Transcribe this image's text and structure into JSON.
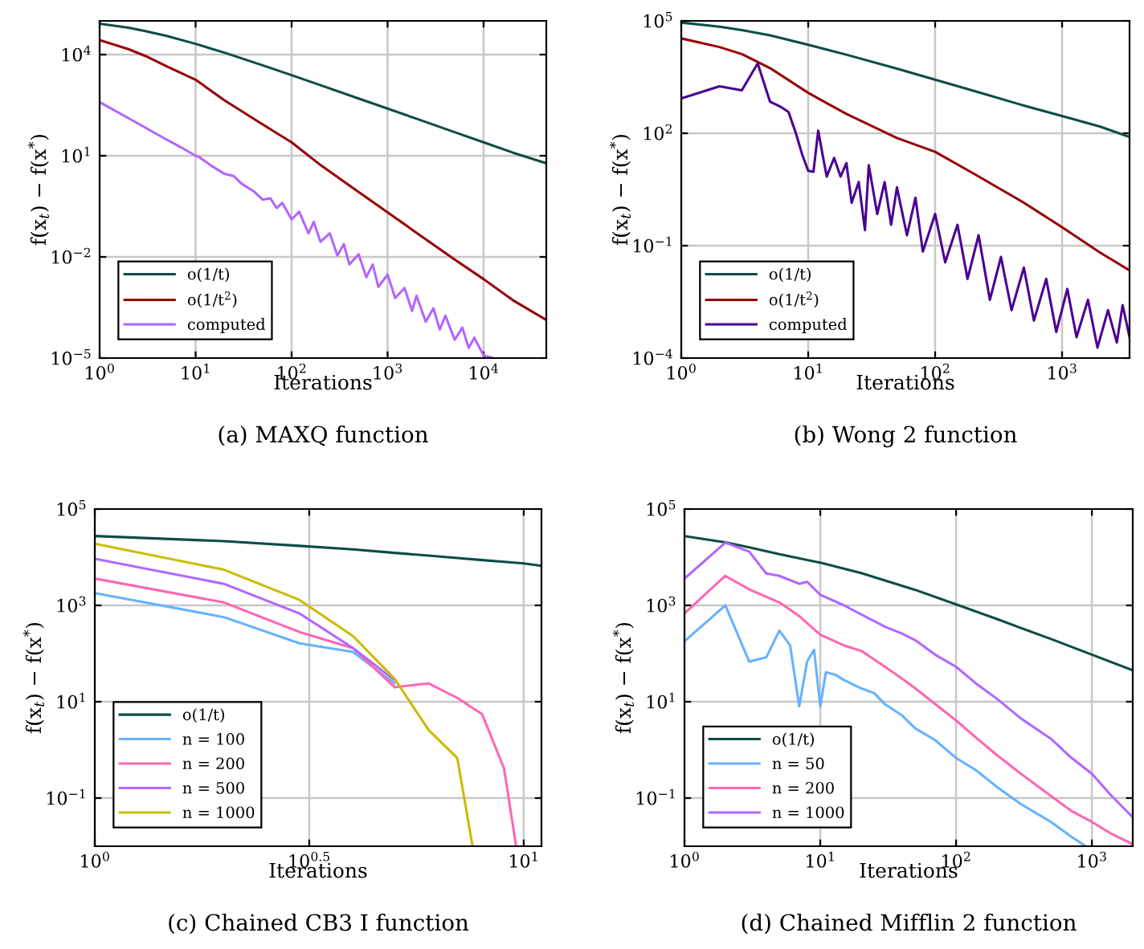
{
  "chart_data": [
    {
      "type": "line",
      "title": "(a) MAXQ function",
      "xlabel": "Iterations",
      "ylabel": "f(x$_{t}$) − f(x$^{*}$)",
      "log": "xy",
      "grid": true,
      "legend": "bottom left",
      "xlim": [
        1,
        45000
      ],
      "ylim": [
        1e-05,
        100000
      ],
      "xticks": [
        {
          "value": 1,
          "label": "10$^{0}$"
        },
        {
          "value": 10,
          "label": "10$^{1}$"
        },
        {
          "value": 100,
          "label": "10$^{2}$"
        },
        {
          "value": 1000,
          "label": "10$^{3}$"
        },
        {
          "value": 10000,
          "label": "10$^{4}$"
        }
      ],
      "yticks": [
        {
          "value": 1e-05,
          "label": "10$^{−5}$"
        },
        {
          "value": 0.01,
          "label": "10$^{−2}$"
        },
        {
          "value": 10,
          "label": "10$^{1}$"
        },
        {
          "value": 10000,
          "label": "10$^{4}$"
        }
      ],
      "series": [
        {
          "name": "o(1/t)",
          "color": "#0b4d45",
          "x": [
            1,
            2,
            3,
            5,
            10,
            20,
            50,
            100,
            200,
            500,
            1000,
            2000,
            5000,
            10000,
            20000,
            45000
          ],
          "values": [
            83000,
            62500,
            50000,
            35700,
            20800,
            11400,
            4800,
            2450,
            1240,
            498,
            250,
            125,
            50,
            25,
            12.5,
            6
          ]
        },
        {
          "name": "o(1/t$^{2}$)",
          "color": "#990000",
          "x": [
            1,
            2,
            3,
            5,
            10,
            20,
            50,
            100,
            200,
            500,
            1000,
            2000,
            5000,
            10000,
            20000,
            45000
          ],
          "values": [
            27000,
            14500,
            9100,
            4500,
            1800,
            440,
            85,
            25,
            5.3,
            0.84,
            0.21,
            0.052,
            0.0084,
            0.0022,
            0.00053,
            0.000135
          ]
        },
        {
          "name": "computed",
          "color": "#b266ff",
          "x": [
            1,
            2,
            3,
            5,
            7,
            10,
            11,
            15,
            20,
            25,
            30,
            40,
            50,
            60,
            70,
            80,
            100,
            120,
            150,
            170,
            200,
            250,
            300,
            350,
            400,
            500,
            600,
            700,
            800,
            1000,
            1200,
            1500,
            1800,
            2000,
            2500,
            3000,
            3500,
            4000,
            5000,
            6000,
            7000,
            8000,
            10000,
            12600
          ],
          "values": [
            390,
            130,
            68,
            30,
            18,
            10,
            9,
            4.8,
            2.9,
            2.5,
            1.5,
            0.9,
            0.5,
            0.55,
            0.28,
            0.4,
            0.13,
            0.22,
            0.05,
            0.11,
            0.028,
            0.05,
            0.011,
            0.024,
            0.006,
            0.012,
            0.0025,
            0.006,
            0.0013,
            0.003,
            0.0006,
            0.0012,
            0.00025,
            0.0007,
            0.00012,
            0.0003,
            7e-05,
            0.00018,
            3.5e-05,
            8e-05,
            2e-05,
            4e-05,
            1.2e-05,
            1e-05
          ]
        }
      ]
    },
    {
      "type": "line",
      "title": "(b) Wong 2 function",
      "xlabel": "Iterations",
      "ylabel": "f(x$_{t}$) − f(x$^{*}$)",
      "log": "xy",
      "grid": true,
      "legend": "bottom left",
      "xlim": [
        1,
        3400
      ],
      "ylim": [
        0.0001,
        100000
      ],
      "xticks": [
        {
          "value": 1,
          "label": "10$^{0}$"
        },
        {
          "value": 10,
          "label": "10$^{1}$"
        },
        {
          "value": 100,
          "label": "10$^{2}$"
        },
        {
          "value": 1000,
          "label": "10$^{3}$"
        }
      ],
      "yticks": [
        {
          "value": 0.0001,
          "label": "10$^{−4}$"
        },
        {
          "value": 0.1,
          "label": "10$^{−1}$"
        },
        {
          "value": 100,
          "label": "10$^{2}$"
        },
        {
          "value": 100000,
          "label": "10$^{5}$"
        }
      ],
      "series": [
        {
          "name": "o(1/t)",
          "color": "#0b4d45",
          "x": [
            1,
            2,
            3,
            5,
            10,
            20,
            50,
            100,
            200,
            500,
            1000,
            2000,
            3400
          ],
          "values": [
            90000,
            70000,
            57000,
            41000,
            23000,
            12500,
            5300,
            2700,
            1370,
            550,
            290,
            150,
            80
          ]
        },
        {
          "name": "o(1/t$^{2}$)",
          "color": "#990000",
          "x": [
            1,
            2,
            3,
            4,
            5,
            10,
            20,
            50,
            100,
            200,
            500,
            1000,
            2000,
            3400
          ],
          "values": [
            34000,
            20000,
            13000,
            8000,
            5500,
            1200,
            330,
            75,
            32,
            8.5,
            1.4,
            0.31,
            0.065,
            0.022
          ]
        },
        {
          "name": "computed",
          "color": "#4b0092",
          "x": [
            1,
            2,
            3,
            4,
            5,
            6,
            7,
            8,
            9,
            10,
            11,
            12,
            13,
            14,
            16,
            18,
            20,
            22,
            25,
            28,
            30,
            35,
            40,
            45,
            50,
            60,
            70,
            80,
            100,
            120,
            150,
            180,
            220,
            270,
            330,
            400,
            500,
            600,
            750,
            900,
            1100,
            1300,
            1600,
            1900,
            2300,
            2700,
            3000,
            3400
          ],
          "values": [
            850,
            1800,
            1400,
            7300,
            700,
            520,
            370,
            100,
            26,
            10,
            9.4,
            118,
            26,
            7,
            22,
            7,
            16,
            1.4,
            5,
            0.26,
            14,
            0.7,
            5,
            0.36,
            3.6,
            0.19,
            1.9,
            0.07,
            0.7,
            0.036,
            0.36,
            0.013,
            0.19,
            0.0036,
            0.05,
            0.0019,
            0.026,
            0.001,
            0.013,
            0.0005,
            0.007,
            0.00036,
            0.0036,
            0.00019,
            0.0019,
            0.00026,
            0.0026,
            0.00036
          ]
        }
      ]
    },
    {
      "type": "line",
      "title": "(c) Chained CB3 I function",
      "xlabel": "Iterations",
      "ylabel": "f(x$_{t}$) − f(x$^{*}$)",
      "log": "xy",
      "grid": true,
      "legend": "bottom left",
      "xlim": [
        1,
        11
      ],
      "ylim": [
        0.01,
        100000
      ],
      "xticks": [
        {
          "value": 1,
          "label": "10$^{0}$"
        },
        {
          "value": 3.1623,
          "label": "10$^{0.5}$"
        },
        {
          "value": 10,
          "label": "10$^{1}$"
        }
      ],
      "yticks": [
        {
          "value": 0.1,
          "label": "10$^{−1}$"
        },
        {
          "value": 10,
          "label": "10$^{1}$"
        },
        {
          "value": 1000,
          "label": "10$^{3}$"
        },
        {
          "value": 100000,
          "label": "10$^{5}$"
        }
      ],
      "series": [
        {
          "name": "o(1/t)",
          "color": "#0b4d45",
          "x": [
            1,
            2,
            3,
            4,
            5,
            6,
            7,
            8,
            9,
            10,
            11
          ],
          "values": [
            27500,
            21500,
            17200,
            14500,
            12300,
            10800,
            9600,
            8700,
            8000,
            7400,
            6600
          ]
        },
        {
          "name": "n = 100",
          "color": "#66b2ff",
          "x": [
            1,
            2,
            3,
            4,
            5
          ],
          "values": [
            1800,
            570,
            163,
            108,
            24
          ]
        },
        {
          "name": "n = 200",
          "color": "#ff66b2",
          "x": [
            1,
            2,
            3,
            4,
            5,
            6,
            7,
            8,
            9,
            9.6
          ],
          "values": [
            3600,
            1150,
            280,
            130,
            20,
            24,
            12,
            5.5,
            0.41,
            0.01
          ]
        },
        {
          "name": "n = 500",
          "color": "#b266ff",
          "x": [
            1,
            2,
            3,
            4,
            5
          ],
          "values": [
            9300,
            2800,
            680,
            130,
            28
          ]
        },
        {
          "name": "n = 1000",
          "color": "#ccbb00",
          "x": [
            1,
            2,
            3,
            4,
            5,
            6,
            7,
            7.6
          ],
          "values": [
            19000,
            5500,
            1300,
            230,
            30,
            2.6,
            0.68,
            0.01
          ]
        }
      ]
    },
    {
      "type": "line",
      "title": "(d) Chained Mifflin 2 function",
      "xlabel": "Iterations",
      "ylabel": "f(x$_{t}$) − f(x$^{*}$)",
      "log": "xy",
      "grid": true,
      "legend": "bottom left",
      "xlim": [
        1,
        2000
      ],
      "ylim": [
        0.01,
        100000
      ],
      "xticks": [
        {
          "value": 1,
          "label": "10$^{0}$"
        },
        {
          "value": 10,
          "label": "10$^{1}$"
        },
        {
          "value": 100,
          "label": "10$^{2}$"
        },
        {
          "value": 1000,
          "label": "10$^{3}$"
        }
      ],
      "yticks": [
        {
          "value": 0.1,
          "label": "10$^{−1}$"
        },
        {
          "value": 10,
          "label": "10$^{1}$"
        },
        {
          "value": 1000,
          "label": "10$^{3}$"
        },
        {
          "value": 100000,
          "label": "10$^{5}$"
        }
      ],
      "series": [
        {
          "name": "o(1/t)",
          "color": "#0b4d45",
          "x": [
            1,
            2,
            3,
            5,
            10,
            20,
            50,
            100,
            200,
            500,
            1000,
            2000
          ],
          "values": [
            27500,
            20400,
            16000,
            11500,
            7700,
            4700,
            2100,
            1050,
            520,
            200,
            95,
            45
          ]
        },
        {
          "name": "n = 50",
          "color": "#66b2ff",
          "x": [
            1,
            2,
            3,
            4,
            5,
            6,
            7,
            8,
            9,
            10,
            11,
            13,
            15,
            20,
            25,
            30,
            40,
            50,
            70,
            100,
            140,
            200,
            300,
            500,
            700,
            900
          ],
          "values": [
            180,
            1000,
            68,
            83,
            300,
            147,
            8,
            68,
            120,
            8,
            41,
            36,
            28,
            19,
            15,
            8.8,
            5.2,
            2.8,
            1.6,
            0.68,
            0.38,
            0.17,
            0.075,
            0.032,
            0.016,
            0.01
          ]
        },
        {
          "name": "n = 200",
          "color": "#ff66b2",
          "x": [
            1,
            2,
            3,
            5,
            7,
            10,
            15,
            20,
            30,
            40,
            50,
            70,
            100,
            140,
            200,
            300,
            500,
            700,
            1000,
            1400,
            2000
          ],
          "values": [
            680,
            4100,
            2150,
            1150,
            600,
            245,
            147,
            114,
            53,
            30,
            19,
            9,
            4.1,
            1.8,
            0.78,
            0.32,
            0.11,
            0.055,
            0.032,
            0.018,
            0.011
          ]
        },
        {
          "name": "n = 1000",
          "color": "#b266ff",
          "x": [
            1,
            2,
            3,
            4,
            5,
            7,
            8,
            10,
            15,
            20,
            30,
            40,
            50,
            70,
            100,
            140,
            200,
            300,
            500,
            700,
            1000,
            1400,
            2000
          ],
          "values": [
            3600,
            20000,
            13000,
            4600,
            4100,
            2800,
            3100,
            1650,
            1000,
            650,
            360,
            260,
            190,
            95,
            53,
            24,
            11.5,
            4.5,
            1.7,
            0.7,
            0.32,
            0.11,
            0.04
          ]
        }
      ]
    }
  ]
}
